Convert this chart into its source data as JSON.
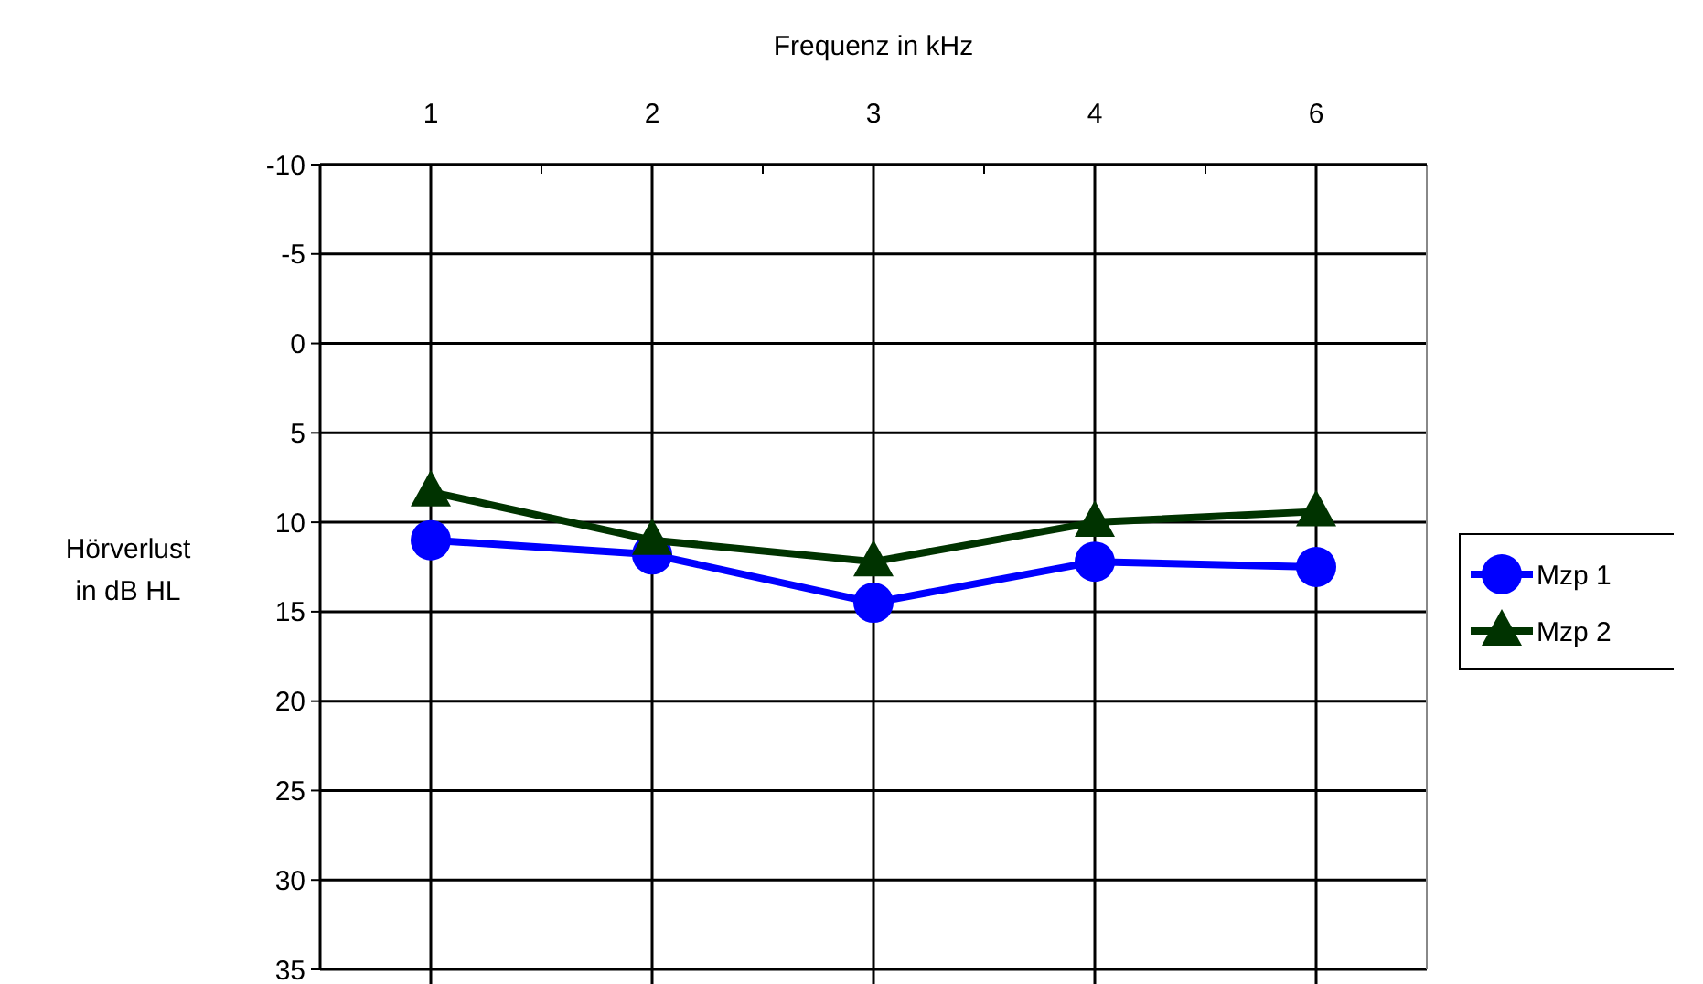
{
  "chart_data": {
    "type": "line",
    "xlabel": "Frequenz in kHz",
    "ylabel": "Hörverlust in dB HL",
    "categories": [
      "1",
      "2",
      "3",
      "4",
      "6"
    ],
    "series": [
      {
        "name": "Mzp 1",
        "color": "#0000ff",
        "marker": "circle",
        "values": [
          11,
          11.8,
          14.5,
          12.2,
          12.5
        ]
      },
      {
        "name": "Mzp 2",
        "color": "#003300",
        "marker": "triangle",
        "values": [
          8.3,
          11,
          12.2,
          10,
          9.4
        ]
      }
    ],
    "ylim": [
      35,
      -10
    ],
    "yticks": [
      -10,
      -5,
      0,
      5,
      10,
      15,
      20,
      25,
      30,
      35
    ],
    "grid": true,
    "legend": "right"
  }
}
